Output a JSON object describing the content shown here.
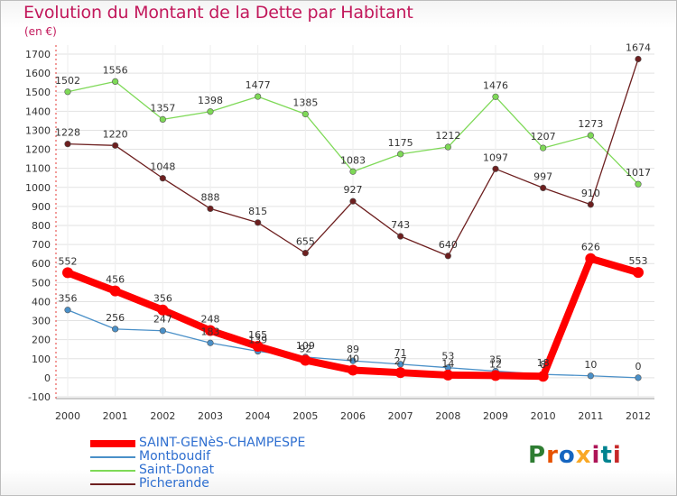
{
  "title": "Evolution du Montant de la Dette par Habitant",
  "subtitle": "(en €)",
  "logo": {
    "text": "Proxiti",
    "letters": [
      {
        "ch": "P",
        "color": "#2e7d32"
      },
      {
        "ch": "r",
        "color": "#e65100"
      },
      {
        "ch": "o",
        "color": "#1565c0"
      },
      {
        "ch": "x",
        "color": "#f9a825"
      },
      {
        "ch": "i",
        "color": "#ad1457"
      },
      {
        "ch": "t",
        "color": "#00838f"
      },
      {
        "ch": "i",
        "color": "#c62828"
      }
    ]
  },
  "chart_data": {
    "type": "line",
    "x": [
      "2000",
      "2001",
      "2002",
      "2003",
      "2004",
      "2005",
      "2006",
      "2007",
      "2008",
      "2009",
      "2010",
      "2011",
      "2012"
    ],
    "ylim": [
      -100,
      1700
    ],
    "yticks": [
      -100,
      0,
      100,
      200,
      300,
      400,
      500,
      600,
      700,
      800,
      900,
      1000,
      1100,
      1200,
      1300,
      1400,
      1500,
      1600,
      1700
    ],
    "grid": true,
    "legend_position": "bottom-left",
    "series": [
      {
        "name": "SAINT-GENèS-CHAMPESPE",
        "color": "#ff0000",
        "labels": [
          "552",
          "456",
          "356",
          "248",
          "165",
          "92",
          "40",
          "27",
          "14",
          "12",
          "8",
          "626",
          "553"
        ],
        "values": [
          552,
          456,
          356,
          248,
          165,
          92,
          40,
          27,
          14,
          12,
          8,
          626,
          553
        ]
      },
      {
        "name": "Montboudif",
        "color": "#4a90c8",
        "labels": [
          "356",
          "256",
          "247",
          "183",
          "139",
          "109",
          "89",
          "71",
          "53",
          "35",
          "18",
          "10",
          "0"
        ],
        "values": [
          356,
          256,
          247,
          183,
          139,
          109,
          89,
          71,
          53,
          35,
          18,
          10,
          0
        ]
      },
      {
        "name": "Saint-Donat",
        "color": "#7ed957",
        "labels": [
          "1502",
          "1556",
          "1357",
          "1398",
          "1477",
          "1385",
          "1083",
          "1175",
          "1212",
          "1476",
          "1207",
          "1273",
          "1017"
        ],
        "values": [
          1502,
          1556,
          1357,
          1398,
          1477,
          1385,
          1083,
          1175,
          1212,
          1476,
          1207,
          1273,
          1017
        ]
      },
      {
        "name": "Picherande",
        "color": "#6d1f1f",
        "labels": [
          "1228",
          "1220",
          "1048",
          "888",
          "815",
          "655",
          "927",
          "743",
          "640",
          "1097",
          "997",
          "910",
          "1674"
        ],
        "values": [
          1228,
          1220,
          1048,
          888,
          815,
          655,
          927,
          743,
          640,
          1097,
          997,
          910,
          1674
        ]
      }
    ]
  }
}
